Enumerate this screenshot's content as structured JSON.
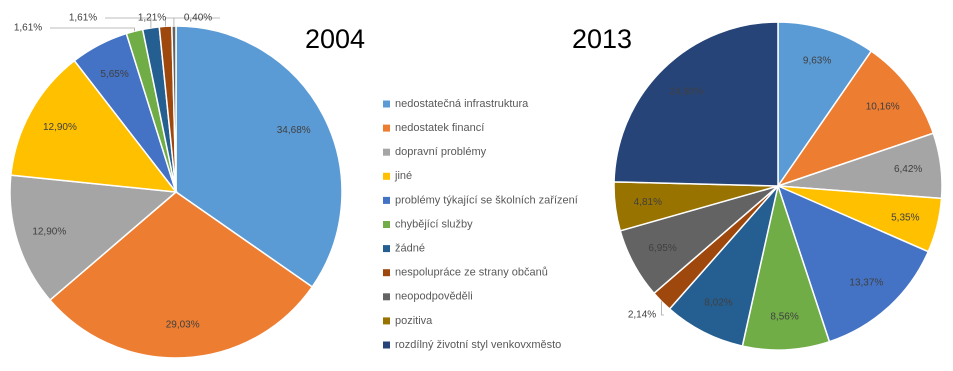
{
  "chart_data": [
    {
      "type": "pie",
      "title": "2004",
      "categories": [
        "nedostatečná infrastruktura",
        "nedostatek financí",
        "dopravní problémy",
        "jiné",
        "problémy týkající se školních zařízení",
        "chybějící služby",
        "žádné",
        "nespolupráce ze strany občanů",
        "neopodpověděli"
      ],
      "values": [
        34.68,
        29.03,
        12.9,
        12.9,
        5.65,
        1.61,
        1.61,
        1.21,
        0.4
      ],
      "value_labels": [
        "34,68%",
        "29,03%",
        "12,90%",
        "12,90%",
        "5,65%",
        "1,61%",
        "1,61%",
        "1,21%",
        "0,40%"
      ],
      "colors": [
        "#5b9bd5",
        "#ed7d31",
        "#a5a5a5",
        "#ffc000",
        "#4472c4",
        "#70ad47",
        "#255e91",
        "#9e480e",
        "#636363"
      ]
    },
    {
      "type": "pie",
      "title": "2013",
      "categories": [
        "nedostatečná infrastruktura",
        "nedostatek financí",
        "dopravní problémy",
        "jiné",
        "problémy týkající se školních zařízení",
        "chybějící služby",
        "žádné",
        "nespolupráce ze strany občanů",
        "neopodpověděli",
        "pozitiva",
        "rozdílný životní styl venkovxměsto"
      ],
      "values": [
        9.63,
        10.16,
        6.42,
        5.35,
        13.37,
        8.56,
        8.02,
        2.14,
        6.95,
        4.81,
        24.6
      ],
      "value_labels": [
        "9,63%",
        "10,16%",
        "6,42%",
        "5,35%",
        "13,37%",
        "8,56%",
        "8,02%",
        "2,14%",
        "6,95%",
        "4,81%",
        "24,60%"
      ],
      "colors": [
        "#5b9bd5",
        "#ed7d31",
        "#a5a5a5",
        "#ffc000",
        "#4472c4",
        "#70ad47",
        "#255e91",
        "#9e480e",
        "#636363",
        "#997300",
        "#264478"
      ]
    }
  ]
}
